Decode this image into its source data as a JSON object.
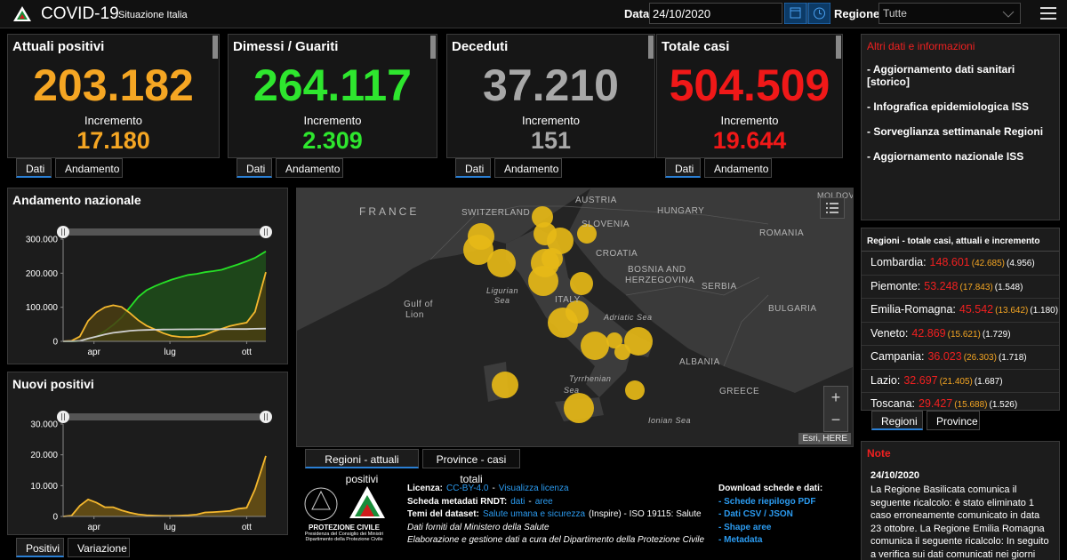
{
  "header": {
    "title": "COVID-19",
    "subtitle": "Situazione Italia",
    "date_label": "Data",
    "date": "24/10/2020",
    "region_label": "Regione",
    "region": "Tutte"
  },
  "cards": [
    {
      "title": "Attuali positivi",
      "value": "203.182",
      "increment_label": "Incremento",
      "increment": "17.180",
      "color": "#f5a623",
      "tabs": [
        "Dati",
        "Andamento"
      ]
    },
    {
      "title": "Dimessi / Guariti",
      "value": "264.117",
      "increment_label": "Incremento",
      "increment": "2.309",
      "color": "#2ee62e",
      "tabs": [
        "Dati",
        "Andamento"
      ]
    },
    {
      "title": "Deceduti",
      "value": "37.210",
      "increment_label": "Incremento",
      "increment": "151",
      "color": "#a8a8a8",
      "tabs": [
        "Dati",
        "Andamento"
      ]
    },
    {
      "title": "Totale casi",
      "value": "504.509",
      "increment_label": "Incremento",
      "increment": "19.644",
      "color": "#f01818",
      "tabs": [
        "Dati",
        "Andamento"
      ]
    }
  ],
  "charts": [
    {
      "type": "line",
      "title": "Andamento nazionale",
      "x": [
        0,
        10,
        20,
        30,
        40,
        50,
        60,
        70,
        80,
        90,
        100,
        110,
        120,
        130,
        140,
        150,
        160,
        170,
        180,
        190,
        200,
        210,
        220,
        230,
        243
      ],
      "xlim": [
        0,
        243
      ],
      "xticks": [
        {
          "value": 37,
          "label": "apr"
        },
        {
          "value": 128,
          "label": "lug"
        },
        {
          "value": 220,
          "label": "ott"
        }
      ],
      "ylim": [
        0,
        300000
      ],
      "yticks": [
        0,
        {
          "value": 100000,
          "label": "100.000"
        },
        {
          "value": 200000,
          "label": "200.000"
        },
        {
          "value": 300000,
          "label": "300.000"
        }
      ],
      "series": [
        {
          "color": "#26e026",
          "fill": "#1f4d1a",
          "values": [
            0,
            40,
            1000,
            7000,
            15000,
            30000,
            48000,
            70000,
            100000,
            130000,
            150000,
            162000,
            172000,
            181000,
            188000,
            195000,
            198000,
            203000,
            206000,
            210000,
            218000,
            226000,
            235000,
            245000,
            264117
          ]
        },
        {
          "color": "#f5b82e",
          "fill": "#4a3d12",
          "values": [
            200,
            1500,
            14000,
            60000,
            85000,
            100000,
            106000,
            101000,
            83000,
            62000,
            46000,
            35000,
            24000,
            16000,
            13000,
            12400,
            14000,
            19000,
            29000,
            37000,
            45000,
            50000,
            55000,
            87000,
            203182
          ]
        },
        {
          "color": "#cfcfcf",
          "values": [
            0,
            100,
            1400,
            8000,
            14000,
            20000,
            25000,
            28000,
            31000,
            32500,
            33500,
            34300,
            34700,
            35000,
            35200,
            35300,
            35400,
            35500,
            35600,
            35800,
            35900,
            36000,
            36100,
            36700,
            37210
          ]
        }
      ]
    },
    {
      "type": "area",
      "title": "Nuovi positivi",
      "x": [
        0,
        10,
        20,
        30,
        40,
        50,
        60,
        70,
        80,
        90,
        100,
        110,
        120,
        130,
        140,
        150,
        160,
        170,
        180,
        190,
        200,
        210,
        220,
        230,
        243
      ],
      "xlim": [
        0,
        243
      ],
      "xticks": [
        {
          "value": 37,
          "label": "apr"
        },
        {
          "value": 128,
          "label": "lug"
        },
        {
          "value": 220,
          "label": "ott"
        }
      ],
      "ylim": [
        0,
        30000
      ],
      "yticks": [
        0,
        {
          "value": 10000,
          "label": "10.000"
        },
        {
          "value": 20000,
          "label": "20.000"
        },
        {
          "value": 30000,
          "label": "30.000"
        }
      ],
      "series": [
        {
          "color": "#f5b82e",
          "fill": "#6b5214",
          "values": [
            0,
            220,
            3500,
            5500,
            4500,
            3000,
            3000,
            2000,
            1200,
            700,
            400,
            300,
            200,
            200,
            300,
            400,
            600,
            1300,
            1400,
            1600,
            1800,
            2500,
            2800,
            8800,
            19644
          ]
        }
      ]
    }
  ],
  "chart_tabs": [
    "Positivi",
    "Variazione"
  ],
  "map": {
    "labels": [
      "FRANCE",
      "SWITZERLAND",
      "AUSTRIA",
      "HUNGARY",
      "ROMANIA",
      "SLOVENIA",
      "CROATIA",
      "BOSNIA AND",
      "HERZEGOVINA",
      "SERBIA",
      "BULGARIA",
      "Gulf of",
      "Lion",
      "Ligurian",
      "Sea",
      "ITALY",
      "Adriatic Sea",
      "Tyrrhenian",
      "Sea",
      "ALBANIA",
      "GREECE",
      "Ionian Sea",
      "MOLDOV"
    ],
    "attribution": "Esri, HERE",
    "zoom": [
      "+",
      "−"
    ],
    "tabs": [
      "Regioni - attuali positivi",
      "Province - casi totali"
    ]
  },
  "info": {
    "title": "Altri dati e informazioni",
    "items": [
      "- Aggiornamento dati sanitari [storico]",
      "- Infografica epidemiologica ISS",
      "- Sorveglianza settimanale Regioni",
      "- Aggiornamento nazionale ISS"
    ]
  },
  "regions": {
    "title": "Regioni - totale casi, attuali e incremento",
    "rows": [
      {
        "name": "Lombardia:",
        "total": "148.601",
        "current": "(42.685)",
        "increment": "(4.956)"
      },
      {
        "name": "Piemonte:",
        "total": "53.248",
        "current": "(17.843)",
        "increment": "(1.548)"
      },
      {
        "name": "Emilia-Romagna:",
        "total": "45.542",
        "current": "(13.642)",
        "increment": "(1.180)"
      },
      {
        "name": "Veneto:",
        "total": "42.869",
        "current": "(15.621)",
        "increment": "(1.729)"
      },
      {
        "name": "Campania:",
        "total": "36.023",
        "current": "(26.303)",
        "increment": "(1.718)"
      },
      {
        "name": "Lazio:",
        "total": "32.697",
        "current": "(21.405)",
        "increment": "(1.687)"
      },
      {
        "name": "Toscana:",
        "total": "29.427",
        "current": "(15.688)",
        "increment": "(1.526)"
      }
    ],
    "tabs": [
      "Regioni",
      "Province"
    ]
  },
  "notes": {
    "title": "Note",
    "date": "24/10/2020",
    "text": "La Regione Basilicata comunica il seguente ricalcolo: è stato eliminato 1 caso erroneamente comunicato in data 23 ottobre. La Regione Emilia Romagna comunica il seguente ricalcolo: In seguito a verifica sui dati comunicati nei giorni passati"
  },
  "footer": {
    "logo": [
      "PROTEZIONE CIVILE",
      "Presidenza del Consiglio dei Ministri",
      "Dipartimento della Protezione Civile"
    ],
    "lines": [
      [
        {
          "text": "Licenza:",
          "style": "b"
        },
        {
          "text": "CC-BY-4.0",
          "style": "a"
        },
        {
          "text": "-",
          "style": "n"
        },
        {
          "text": "Visualizza licenza",
          "style": "a"
        }
      ],
      [
        {
          "text": "Scheda metadati RNDT:",
          "style": "b"
        },
        {
          "text": "dati",
          "style": "a"
        },
        {
          "text": "-",
          "style": "n"
        },
        {
          "text": "aree",
          "style": "a"
        }
      ],
      [
        {
          "text": "Temi del dataset:",
          "style": "b"
        },
        {
          "text": "Salute umana e sicurezza",
          "style": "a"
        },
        {
          "text": "(Inspire) - ISO 19115: Salute",
          "style": "n"
        }
      ],
      [
        {
          "text": "Dati forniti dal Ministero della Salute",
          "style": "i"
        }
      ],
      [
        {
          "text": "Elaborazione e gestione dati a cura del Dipartimento della Protezione Civile",
          "style": "i"
        }
      ]
    ],
    "download_title": "Download schede e dati:",
    "downloads": [
      "- Schede riepilogo PDF",
      "- Dati CSV / JSON",
      "- Shape aree",
      "- Metadata"
    ]
  }
}
